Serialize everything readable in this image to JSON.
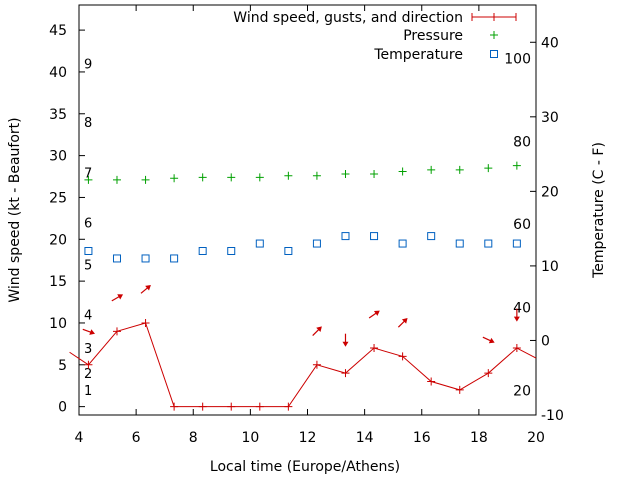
{
  "chart_data": {
    "type": "line",
    "xlabel": "Local time (Europe/Athens)",
    "ylabel": "Wind speed (kt - Beaufort)",
    "y2label": "Temperature (C - F)",
    "xlim": [
      4,
      20
    ],
    "ylim": [
      -1,
      48
    ],
    "y2lim": [
      -10,
      45
    ],
    "x_ticks": [
      4,
      6,
      8,
      10,
      12,
      14,
      16,
      18,
      20
    ],
    "y_ticks": [
      0,
      5,
      10,
      15,
      20,
      25,
      30,
      35,
      40,
      45
    ],
    "y2_ticks": [
      -10,
      0,
      10,
      20,
      30,
      40
    ],
    "beaufort_scale": [
      {
        "label": "1",
        "kt": 2
      },
      {
        "label": "2",
        "kt": 4
      },
      {
        "label": "3",
        "kt": 7
      },
      {
        "label": "4",
        "kt": 11
      },
      {
        "label": "5",
        "kt": 17
      },
      {
        "label": "6",
        "kt": 22
      },
      {
        "label": "7",
        "kt": 28
      },
      {
        "label": "8",
        "kt": 34
      },
      {
        "label": "9",
        "kt": 41
      }
    ],
    "fahrenheit_scale": [
      {
        "label": "20",
        "c": -6.7
      },
      {
        "label": "40",
        "c": 4.4
      },
      {
        "label": "60",
        "c": 15.6
      },
      {
        "label": "80",
        "c": 26.7
      },
      {
        "label": "100",
        "c": 37.8
      }
    ],
    "legend_position": "top-right",
    "series": [
      {
        "name": "Wind speed, gusts, and direction",
        "color": "#cc0000",
        "x": [
          3.67,
          4.33,
          5.33,
          6.33,
          7.33,
          8.33,
          9.33,
          10.33,
          11.33,
          12.33,
          13.33,
          14.33,
          15.33,
          16.33,
          17.33,
          18.33,
          19.33,
          20.0
        ],
        "values": [
          6.5,
          5,
          9,
          10,
          0,
          0,
          0,
          0,
          0,
          5,
          4,
          7,
          6,
          3,
          2,
          4,
          7,
          5.8
        ]
      },
      {
        "name": "Pressure",
        "color": "#00a000",
        "x": [
          4.33,
          5.33,
          6.33,
          7.33,
          8.33,
          9.33,
          10.33,
          11.33,
          12.33,
          13.33,
          14.33,
          15.33,
          16.33,
          17.33,
          18.33,
          19.33
        ],
        "values": [
          27.1,
          27.1,
          27.1,
          27.3,
          27.4,
          27.4,
          27.4,
          27.6,
          27.6,
          27.8,
          27.8,
          28.1,
          28.3,
          28.3,
          28.5,
          28.8
        ]
      },
      {
        "name": "Temperature",
        "color": "#0060c0",
        "x": [
          4.33,
          5.33,
          6.33,
          7.33,
          8.33,
          9.33,
          10.33,
          11.33,
          12.33,
          13.33,
          14.33,
          15.33,
          16.33,
          17.33,
          18.33,
          19.33
        ],
        "values": [
          12,
          11,
          11,
          11,
          12,
          12,
          13,
          12,
          13,
          14,
          14,
          13,
          14,
          13,
          13,
          13
        ]
      }
    ],
    "wind_direction_arrows": [
      {
        "x": 4.33,
        "kt": 9,
        "angle_deg": 20
      },
      {
        "x": 5.33,
        "kt": 13,
        "angle_deg": -30
      },
      {
        "x": 6.33,
        "kt": 14,
        "angle_deg": -40
      },
      {
        "x": 12.33,
        "kt": 9,
        "angle_deg": -45
      },
      {
        "x": 13.33,
        "kt": 8,
        "angle_deg": 90
      },
      {
        "x": 14.33,
        "kt": 11,
        "angle_deg": -35
      },
      {
        "x": 15.33,
        "kt": 10,
        "angle_deg": -45
      },
      {
        "x": 18.33,
        "kt": 8,
        "angle_deg": 25
      },
      {
        "x": 19.33,
        "kt": 11,
        "angle_deg": 90
      }
    ]
  }
}
